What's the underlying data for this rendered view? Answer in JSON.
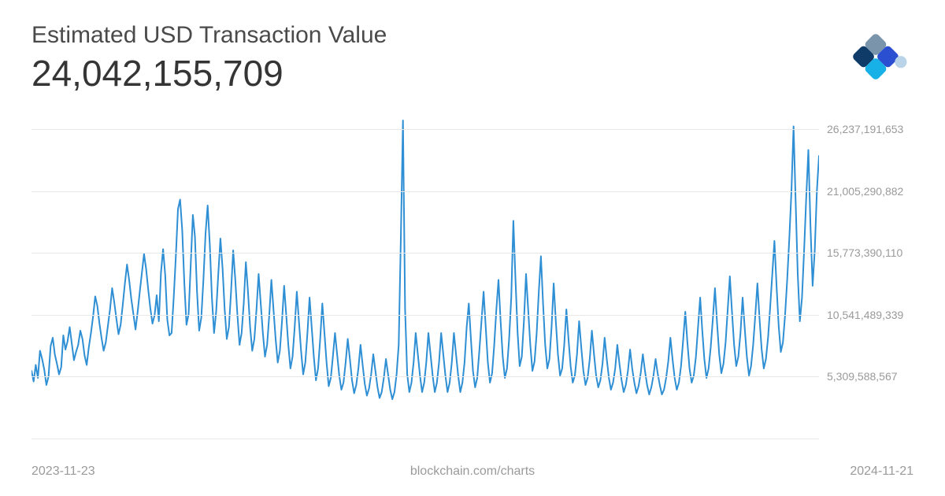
{
  "header": {
    "title": "Estimated USD Transaction Value",
    "value": "24,042,155,709"
  },
  "logo": {
    "colors": {
      "top": "#7a94ab",
      "left": "#0f3b69",
      "right": "#2a4fd1",
      "bottom": "#17b1e8",
      "pale": "#b9d4e8"
    }
  },
  "chart": {
    "type": "line",
    "line_color": "#2f8fd4",
    "line_width": 2,
    "background_color": "#ffffff",
    "grid_color": "#e8e8e8",
    "ylim": [
      0,
      28000000000
    ],
    "y_ticks": [
      {
        "v": 5309588567,
        "label": "5,309,588,567"
      },
      {
        "v": 10541489339,
        "label": "10,541,489,339"
      },
      {
        "v": 15773390110,
        "label": "15,773,390,110"
      },
      {
        "v": 21005290882,
        "label": "21,005,290,882"
      },
      {
        "v": 26237191653,
        "label": "26,237,191,653"
      }
    ],
    "values_billion": [
      5.8,
      4.9,
      6.3,
      5.2,
      7.5,
      6.8,
      5.9,
      4.6,
      5.3,
      7.9,
      8.6,
      7.2,
      6.4,
      5.5,
      6.1,
      8.8,
      7.6,
      8.3,
      9.5,
      8.1,
      6.7,
      7.4,
      8.0,
      9.2,
      8.5,
      7.1,
      6.3,
      7.8,
      9.0,
      10.4,
      12.1,
      11.3,
      9.8,
      8.6,
      7.5,
      8.2,
      9.6,
      11.0,
      12.8,
      11.6,
      10.2,
      8.9,
      9.7,
      11.4,
      13.2,
      14.8,
      13.5,
      11.9,
      10.6,
      9.3,
      10.8,
      12.5,
      14.1,
      15.7,
      14.4,
      12.7,
      11.1,
      9.8,
      10.5,
      12.2,
      10.0,
      14.1,
      16.1,
      13.9,
      10.1,
      8.8,
      9.0,
      12.0,
      15.5,
      19.5,
      20.3,
      17.7,
      13.2,
      9.7,
      10.6,
      14.8,
      19.0,
      17.2,
      12.5,
      9.2,
      10.3,
      13.5,
      17.4,
      19.8,
      16.5,
      12.0,
      9.0,
      10.8,
      14.0,
      17.0,
      14.5,
      11.0,
      8.5,
      9.5,
      12.5,
      16.0,
      13.5,
      10.5,
      8.0,
      9.0,
      11.5,
      15.0,
      12.5,
      9.5,
      7.5,
      8.5,
      11.0,
      14.0,
      11.5,
      9.0,
      7.0,
      8.0,
      10.5,
      13.5,
      11.0,
      8.5,
      6.5,
      7.5,
      10.0,
      13.0,
      10.5,
      8.0,
      6.0,
      7.0,
      9.5,
      12.5,
      10.0,
      7.5,
      5.5,
      6.5,
      9.0,
      12.0,
      9.5,
      7.0,
      5.0,
      6.0,
      8.5,
      11.5,
      9.0,
      6.5,
      4.5,
      5.2,
      7.0,
      9.0,
      7.2,
      5.4,
      4.2,
      4.8,
      6.5,
      8.5,
      6.8,
      5.0,
      3.9,
      4.6,
      6.0,
      8.0,
      6.3,
      4.7,
      3.7,
      4.3,
      5.5,
      7.2,
      5.8,
      4.4,
      3.5,
      4.0,
      5.2,
      6.8,
      5.5,
      4.2,
      3.4,
      4.0,
      5.5,
      8.0,
      17.0,
      27.0,
      11.0,
      5.5,
      4.0,
      4.8,
      6.5,
      9.0,
      7.2,
      5.4,
      4.0,
      4.8,
      6.5,
      9.0,
      7.2,
      5.4,
      4.0,
      4.8,
      6.5,
      9.0,
      7.2,
      5.4,
      4.0,
      4.8,
      6.5,
      9.0,
      7.2,
      5.4,
      4.0,
      4.8,
      6.5,
      9.5,
      11.5,
      8.5,
      5.8,
      4.4,
      5.2,
      7.5,
      10.0,
      12.5,
      9.5,
      6.5,
      4.8,
      5.6,
      8.0,
      11.0,
      13.5,
      10.0,
      7.0,
      5.2,
      6.0,
      8.5,
      12.0,
      18.5,
      13.5,
      9.0,
      6.2,
      7.0,
      10.0,
      14.0,
      11.0,
      8.0,
      5.8,
      6.6,
      9.0,
      12.5,
      15.5,
      11.5,
      8.0,
      6.0,
      6.8,
      9.5,
      13.2,
      10.0,
      7.2,
      5.4,
      6.0,
      8.0,
      11.0,
      8.5,
      6.2,
      4.8,
      5.4,
      7.2,
      10.0,
      7.8,
      5.8,
      4.6,
      5.2,
      6.8,
      9.2,
      7.2,
      5.4,
      4.4,
      5.0,
      6.4,
      8.6,
      6.8,
      5.2,
      4.2,
      4.8,
      6.0,
      8.0,
      6.4,
      5.0,
      4.0,
      4.6,
      5.8,
      7.6,
      6.0,
      4.8,
      3.9,
      4.5,
      5.6,
      7.2,
      5.8,
      4.6,
      3.8,
      4.4,
      5.4,
      6.8,
      5.6,
      4.6,
      3.8,
      4.2,
      5.2,
      6.6,
      8.6,
      6.8,
      5.2,
      4.2,
      4.8,
      6.2,
      8.4,
      10.8,
      8.2,
      6.0,
      4.8,
      5.4,
      7.0,
      9.5,
      12.0,
      9.2,
      6.8,
      5.2,
      6.0,
      7.8,
      10.2,
      12.8,
      9.8,
      7.2,
      5.6,
      6.4,
      8.2,
      11.0,
      13.8,
      10.8,
      8.0,
      6.2,
      7.0,
      9.0,
      12.0,
      9.4,
      7.0,
      5.4,
      6.2,
      8.0,
      10.5,
      13.2,
      10.2,
      7.6,
      6.0,
      6.8,
      8.6,
      11.2,
      14.0,
      16.8,
      13.0,
      9.6,
      7.4,
      8.2,
      10.5,
      13.5,
      17.0,
      21.0,
      26.5,
      20.0,
      14.0,
      10.0,
      12.0,
      16.0,
      20.5,
      24.5,
      18.0,
      13.0,
      16.0,
      21.0,
      24.0
    ]
  },
  "footer": {
    "start_date": "2023-11-23",
    "source": "blockchain.com/charts",
    "end_date": "2024-11-21"
  }
}
